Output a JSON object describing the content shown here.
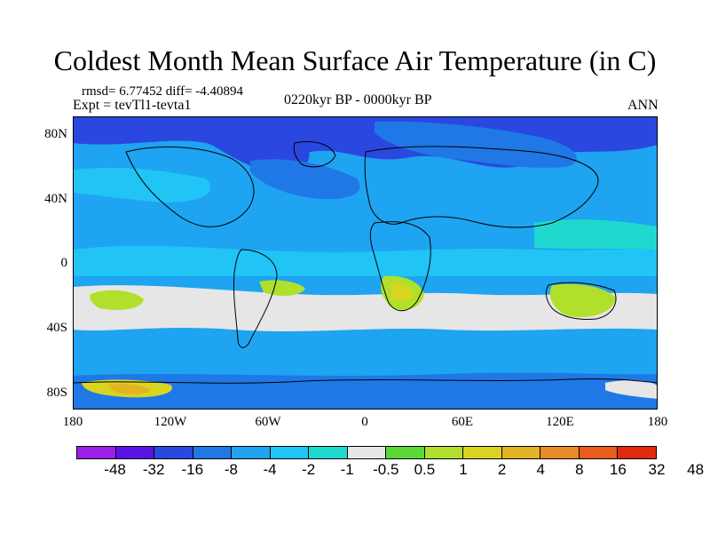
{
  "title": "Coldest Month Mean Surface Air Temperature (in C)",
  "stats": "rmsd= 6.77452 diff= -4.40894",
  "experiment": "Expt = tevTl1-tevta1",
  "period": "0220kyr BP - 0000kyr BP",
  "season": "ANN",
  "map": {
    "type": "global-temperature-difference",
    "projection": "cylindrical-equidistant",
    "lat_range": [
      -90,
      90
    ],
    "lon_range": [
      -180,
      180
    ],
    "y_ticks": [
      "80N",
      "40N",
      "0",
      "40S",
      "80S"
    ],
    "x_ticks": [
      "180",
      "120W",
      "60W",
      "0",
      "60E",
      "120E",
      "180"
    ]
  },
  "colorbar": {
    "colors": [
      "#9b1fe8",
      "#5b12e6",
      "#2a47e0",
      "#1f78e6",
      "#1ea4f0",
      "#20c4f5",
      "#1fd9cf",
      "#e6e6e6",
      "#5ad838",
      "#b0e02c",
      "#d8d520",
      "#e2b424",
      "#e98c26",
      "#ea5c1c",
      "#e02a10"
    ],
    "labels": [
      "-48",
      "-32",
      "-16",
      "-8",
      "-4",
      "-2",
      "-1",
      "-0.5",
      "0.5",
      "1",
      "2",
      "4",
      "8",
      "16",
      "32",
      "48"
    ]
  }
}
